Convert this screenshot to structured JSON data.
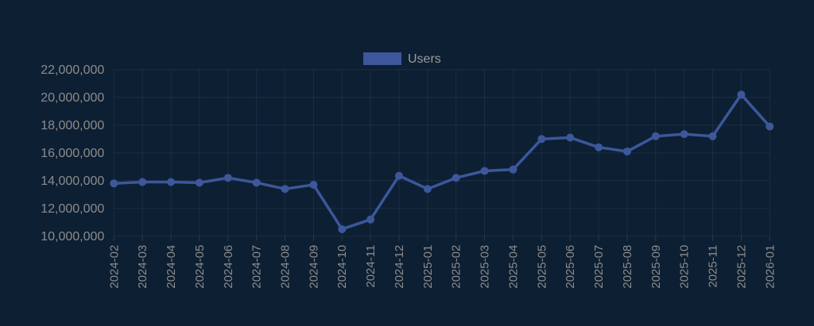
{
  "chart": {
    "legend": {
      "label": "Users"
    },
    "colors": {
      "background": "#0d1f33",
      "series": "#3c579a",
      "grid": "rgba(200,220,240,0.08)",
      "tick_mark": "rgba(200,220,240,0.14)",
      "axis_label": "#8c8c8c",
      "legend_label": "#9a9a9a"
    }
  },
  "chart_data": {
    "type": "line",
    "title": "",
    "xlabel": "",
    "ylabel": "",
    "legend_position": "top-center",
    "grid": true,
    "marker": "circle",
    "x_tick_rotation": 90,
    "ylim": [
      10000000,
      22000000
    ],
    "ytick_step": 2000000,
    "ytick_labels": [
      "10,000,000",
      "12,000,000",
      "14,000,000",
      "16,000,000",
      "18,000,000",
      "20,000,000",
      "22,000,000"
    ],
    "categories": [
      "2024-02",
      "2024-03",
      "2024-04",
      "2024-05",
      "2024-06",
      "2024-07",
      "2024-08",
      "2024-09",
      "2024-10",
      "2024-11",
      "2024-12",
      "2025-01",
      "2025-02",
      "2025-03",
      "2025-04",
      "2025-05",
      "2025-06",
      "2025-07",
      "2025-08",
      "2025-09",
      "2025-10",
      "2025-11",
      "2025-12",
      "2026-01"
    ],
    "series": [
      {
        "name": "Users",
        "values": [
          13800000,
          13900000,
          13900000,
          13850000,
          14200000,
          13850000,
          13400000,
          13700000,
          10500000,
          11200000,
          14350000,
          13400000,
          14200000,
          14700000,
          14800000,
          17000000,
          17100000,
          16400000,
          16100000,
          17200000,
          17350000,
          17200000,
          20200000,
          17900000
        ]
      }
    ]
  }
}
